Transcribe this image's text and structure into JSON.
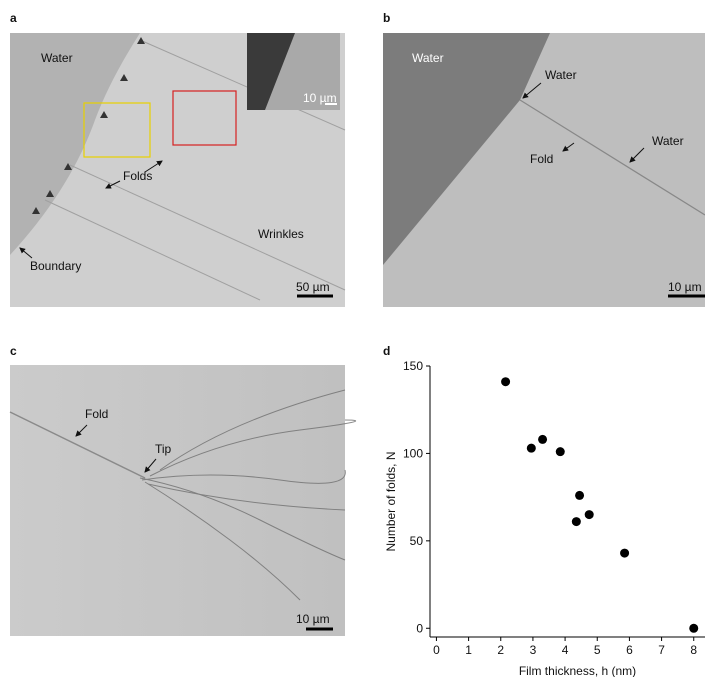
{
  "panels": {
    "a": {
      "label": "a",
      "texts": [
        "Water",
        "Folds",
        "Boundary",
        "Wrinkles",
        "50 µm",
        "10 µm"
      ]
    },
    "b": {
      "label": "b",
      "texts": [
        "Water",
        "Water",
        "Water",
        "Fold",
        "10 µm"
      ]
    },
    "c": {
      "label": "c",
      "texts": [
        "Fold",
        "Tip",
        "10 µm"
      ]
    },
    "d": {
      "label": "d"
    }
  },
  "chart_data": {
    "type": "scatter",
    "x_label": "Film thickness, h (nm)",
    "y_label": "Number of folds, N",
    "x": [
      2.15,
      2.95,
      3.3,
      3.85,
      4.35,
      4.45,
      4.75,
      5.85,
      8.0
    ],
    "values": [
      141,
      103,
      108,
      101,
      61,
      76,
      65,
      43,
      0
    ],
    "color": "#000000",
    "xlim": [
      -0.2,
      8.35
    ],
    "xticks": [
      0,
      1,
      2,
      3,
      4,
      5,
      6,
      7,
      8
    ],
    "ylim": [
      -5,
      150
    ],
    "yticks": [
      0,
      50,
      100,
      150
    ]
  }
}
